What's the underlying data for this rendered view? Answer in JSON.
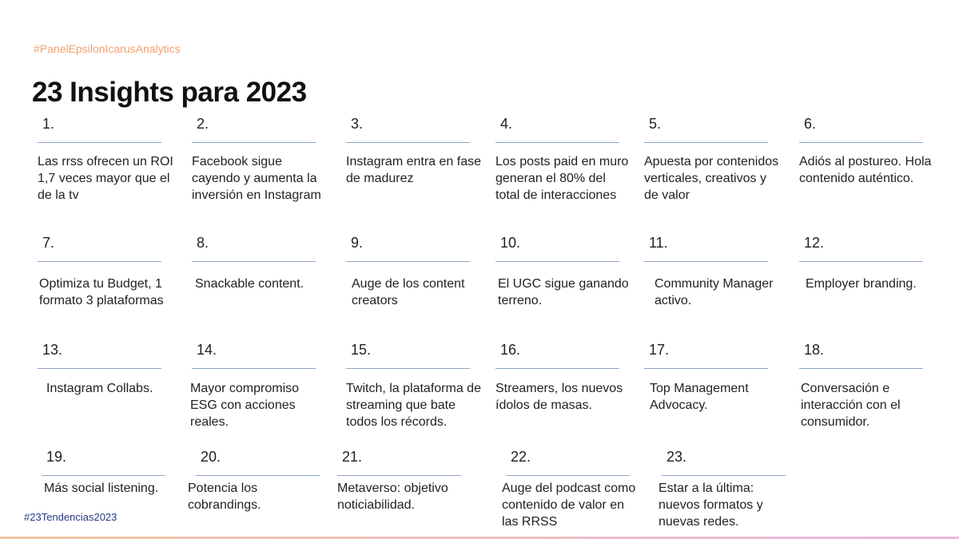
{
  "header": {
    "tag": "#PanelEpsilonIcarusAnalytics",
    "title": "23 Insights para 2023"
  },
  "items": [
    {
      "number": "1.",
      "text": "Las rrss ofrecen un ROI 1,7 veces mayor que el de la tv"
    },
    {
      "number": "2.",
      "text": "Facebook sigue cayendo y aumenta la inversión en Instagram"
    },
    {
      "number": "3.",
      "text": "Instagram entra en fase de madurez"
    },
    {
      "number": "4.",
      "text": "Los posts paid en muro generan el 80% del total de interacciones"
    },
    {
      "number": "5.",
      "text": "Apuesta por contenidos verticales, creativos y de valor"
    },
    {
      "number": "6.",
      "text": "Adiós al postureo. Hola contenido auténtico."
    },
    {
      "number": "7.",
      "text": "Optimiza tu Budget, 1 formato 3 plataformas"
    },
    {
      "number": "8.",
      "text": "Snackable content."
    },
    {
      "number": "9.",
      "text": "Auge de los content creators"
    },
    {
      "number": "10.",
      "text": "El UGC sigue ganando terreno."
    },
    {
      "number": "11.",
      "text": "Community Manager activo."
    },
    {
      "number": "12.",
      "text": "Employer branding."
    },
    {
      "number": "13.",
      "text": "Instagram Collabs."
    },
    {
      "number": "14.",
      "text": "Mayor compromiso ESG con acciones reales."
    },
    {
      "number": "15.",
      "text": "Twitch, la plataforma de streaming que bate todos los récords."
    },
    {
      "number": "16.",
      "text": "Streamers, los nuevos ídolos de masas."
    },
    {
      "number": "17.",
      "text": "Top Management Advocacy."
    },
    {
      "number": "18.",
      "text": "Conversación e interacción con el consumidor."
    },
    {
      "number": "19.",
      "text": "Más social listening."
    },
    {
      "number": "20.",
      "text": "Potencia los cobrandings."
    },
    {
      "number": "21.",
      "text": "Metaverso: objetivo noticiabilidad."
    },
    {
      "number": "22.",
      "text": "Auge del podcast como contenido de valor en las RRSS"
    },
    {
      "number": "23.",
      "text": "Estar a la última: nuevos formatos y nuevas redes."
    }
  ],
  "footer": {
    "tag": "#23Tendencias2023"
  }
}
